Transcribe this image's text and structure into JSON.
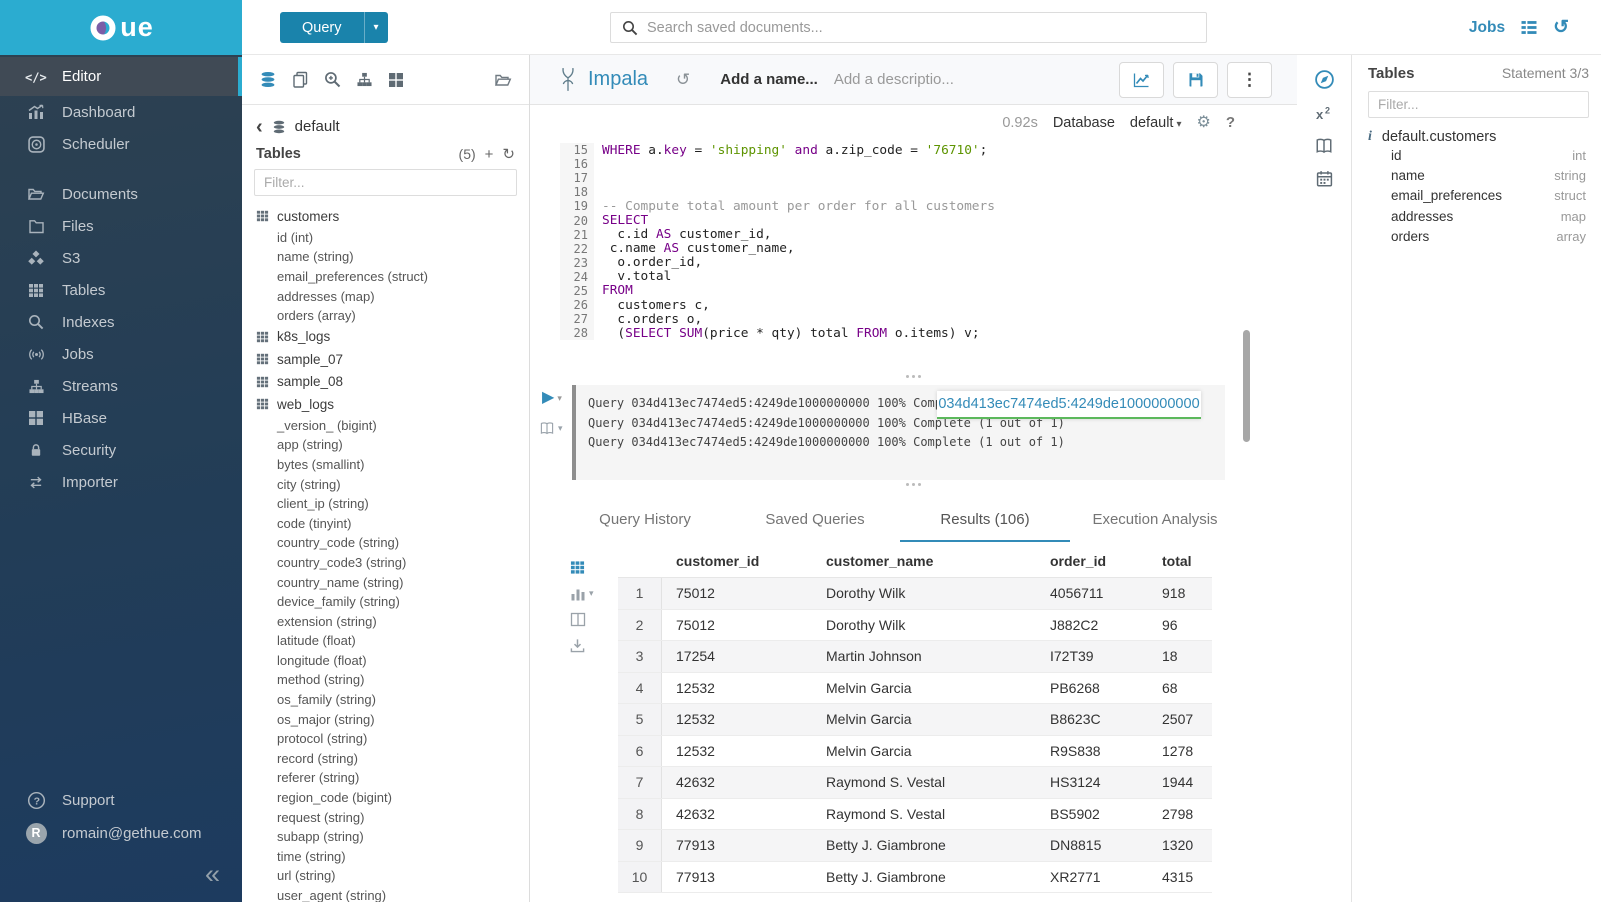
{
  "colors": {
    "accent": "#338bb8",
    "logo_bg": "#2bacd0",
    "active_indicator": "#2bacd0",
    "keyword": "#770088",
    "string": "#5d9400",
    "overlay_underline": "#5cb85c"
  },
  "brand": {
    "logo_text": "ue"
  },
  "topbar": {
    "query_button": "Query",
    "search_placeholder": "Search saved documents...",
    "jobs_label": "Jobs"
  },
  "sidebar": {
    "groups": [
      {
        "items": [
          {
            "icon": "code",
            "label": "Editor",
            "active": true
          },
          {
            "icon": "dashboard",
            "label": "Dashboard"
          },
          {
            "icon": "scheduler",
            "label": "Scheduler"
          }
        ]
      },
      {
        "items": [
          {
            "icon": "documents",
            "label": "Documents"
          },
          {
            "icon": "folder",
            "label": "Files"
          },
          {
            "icon": "cubes",
            "label": "S3"
          },
          {
            "icon": "table",
            "label": "Tables"
          },
          {
            "icon": "search",
            "label": "Indexes"
          },
          {
            "icon": "signal",
            "label": "Jobs"
          },
          {
            "icon": "sitemap",
            "label": "Streams"
          },
          {
            "icon": "grid4",
            "label": "HBase"
          },
          {
            "icon": "lock",
            "label": "Security"
          },
          {
            "icon": "swap",
            "label": "Importer"
          }
        ]
      }
    ],
    "footer": [
      {
        "icon": "help",
        "label": "Support"
      },
      {
        "icon": "avatar",
        "label": "romain@gethue.com"
      }
    ],
    "user_initial": "R"
  },
  "left_assist": {
    "db_name": "default",
    "tables_label": "Tables",
    "tables_count": "(5)",
    "filter_placeholder": "Filter...",
    "tree": [
      {
        "name": "customers",
        "columns": [
          "id (int)",
          "name (string)",
          "email_preferences (struct)",
          "addresses (map)",
          "orders (array)"
        ]
      },
      {
        "name": "k8s_logs",
        "columns": []
      },
      {
        "name": "sample_07",
        "columns": []
      },
      {
        "name": "sample_08",
        "columns": []
      },
      {
        "name": "web_logs",
        "columns": [
          "_version_ (bigint)",
          "app (string)",
          "bytes (smallint)",
          "city (string)",
          "client_ip (string)",
          "code (tinyint)",
          "country_code (string)",
          "country_code3 (string)",
          "country_name (string)",
          "device_family (string)",
          "extension (string)",
          "latitude (float)",
          "longitude (float)",
          "method (string)",
          "os_family (string)",
          "os_major (string)",
          "protocol (string)",
          "record (string)",
          "referer (string)",
          "region_code (bigint)",
          "request (string)",
          "subapp (string)",
          "time (string)",
          "url (string)",
          "user_agent (string)"
        ]
      }
    ]
  },
  "editor": {
    "engine": "Impala",
    "name_placeholder": "Add a name...",
    "description_placeholder": "Add a descriptio...",
    "duration": "0.92s",
    "database_label": "Database",
    "database_value": "default",
    "code": [
      {
        "n": 15,
        "tokens": [
          [
            "kw",
            "WHERE"
          ],
          [
            "t",
            " a."
          ],
          [
            "kw",
            "key"
          ],
          [
            "t",
            " = "
          ],
          [
            "s",
            "'shipping'"
          ],
          [
            "t",
            " "
          ],
          [
            "kw",
            "and"
          ],
          [
            "t",
            " a.zip_code = "
          ],
          [
            "s",
            "'76710'"
          ],
          [
            "t",
            ";"
          ]
        ]
      },
      {
        "n": 16,
        "tokens": []
      },
      {
        "n": 17,
        "tokens": []
      },
      {
        "n": 18,
        "tokens": []
      },
      {
        "n": 19,
        "tokens": [
          [
            "c",
            "-- Compute total amount per order for all customers"
          ]
        ]
      },
      {
        "n": 20,
        "tokens": [
          [
            "kw",
            "SELECT"
          ]
        ]
      },
      {
        "n": 21,
        "tokens": [
          [
            "t",
            "  c.id "
          ],
          [
            "kw",
            "AS"
          ],
          [
            "t",
            " customer_id,"
          ]
        ]
      },
      {
        "n": 22,
        "tokens": [
          [
            "t",
            " c.name "
          ],
          [
            "kw",
            "AS"
          ],
          [
            "t",
            " customer_name,"
          ]
        ]
      },
      {
        "n": 23,
        "tokens": [
          [
            "t",
            "  o.order_id,"
          ]
        ]
      },
      {
        "n": 24,
        "tokens": [
          [
            "t",
            "  v.total"
          ]
        ]
      },
      {
        "n": 25,
        "tokens": [
          [
            "kw",
            "FROM"
          ]
        ]
      },
      {
        "n": 26,
        "tokens": [
          [
            "t",
            "  customers c,"
          ]
        ]
      },
      {
        "n": 27,
        "tokens": [
          [
            "t",
            "  c.orders o,"
          ]
        ]
      },
      {
        "n": 28,
        "tokens": [
          [
            "t",
            "  ("
          ],
          [
            "kw",
            "SELECT"
          ],
          [
            "t",
            " "
          ],
          [
            "kw",
            "SUM"
          ],
          [
            "t",
            "(price * qty) total "
          ],
          [
            "kw",
            "FROM"
          ],
          [
            "t",
            " o.items) v;"
          ]
        ]
      }
    ]
  },
  "log": {
    "lines": [
      "Query 034d413ec7474ed5:4249de1000000000 100% Complete (1 out of 1)",
      "Query 034d413ec7474ed5:4249de1000000000 100% Complete (1 out of 1)",
      "Query 034d413ec7474ed5:4249de1000000000 100% Complete (1 out of 1)"
    ],
    "overlay_link": "034d413ec7474ed5:4249de1000000000"
  },
  "result_tabs": [
    {
      "label": "Query History"
    },
    {
      "label": "Saved Queries"
    },
    {
      "label": "Results (106)",
      "active": true
    },
    {
      "label": "Execution Analysis"
    }
  ],
  "results": {
    "headers": [
      "customer_id",
      "customer_name",
      "order_id",
      "total"
    ],
    "rows": [
      [
        "1",
        "75012",
        "Dorothy Wilk",
        "4056711",
        "918"
      ],
      [
        "2",
        "75012",
        "Dorothy Wilk",
        "J882C2",
        "96"
      ],
      [
        "3",
        "17254",
        "Martin Johnson",
        "I72T39",
        "18"
      ],
      [
        "4",
        "12532",
        "Melvin Garcia",
        "PB6268",
        "68"
      ],
      [
        "5",
        "12532",
        "Melvin Garcia",
        "B8623C",
        "2507"
      ],
      [
        "6",
        "12532",
        "Melvin Garcia",
        "R9S838",
        "1278"
      ],
      [
        "7",
        "42632",
        "Raymond S. Vestal",
        "HS3124",
        "1944"
      ],
      [
        "8",
        "42632",
        "Raymond S. Vestal",
        "BS5902",
        "2798"
      ],
      [
        "9",
        "77913",
        "Betty J. Giambrone",
        "DN8815",
        "1320"
      ],
      [
        "10",
        "77913",
        "Betty J. Giambrone",
        "XR2771",
        "4315"
      ]
    ]
  },
  "right_assist": {
    "title": "Tables",
    "statement": "Statement 3/3",
    "filter_placeholder": "Filter...",
    "table_name": "default.customers",
    "columns": [
      [
        "id",
        "int"
      ],
      [
        "name",
        "string"
      ],
      [
        "email_preferences",
        "struct"
      ],
      [
        "addresses",
        "map"
      ],
      [
        "orders",
        "array"
      ]
    ]
  }
}
